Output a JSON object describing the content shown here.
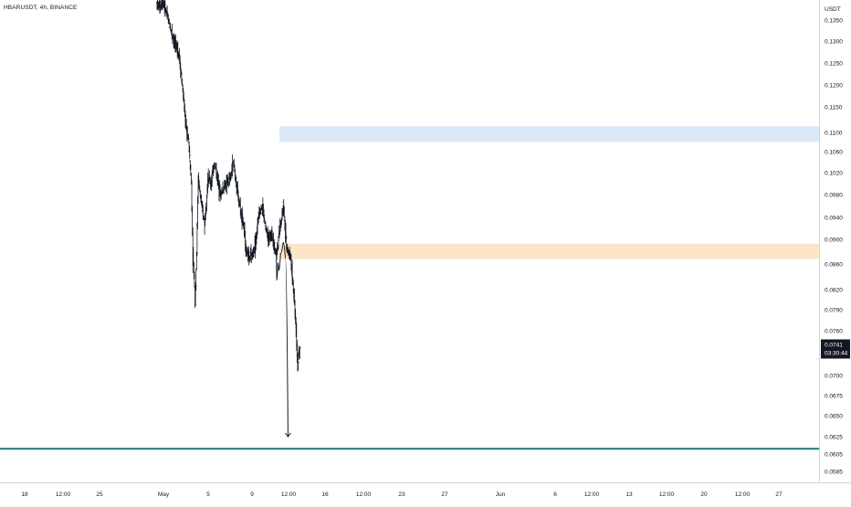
{
  "header": {
    "symbol_label": "HBARUSDT, 4h, BINANCE"
  },
  "price_axis": {
    "unit": "USDT",
    "ticks": [
      "0.1350",
      "0.1300",
      "0.1250",
      "0.1200",
      "0.1150",
      "0.1100",
      "0.1060",
      "0.1020",
      "0.0980",
      "0.0940",
      "0.0900",
      "0.0860",
      "0.0820",
      "0.0790",
      "0.0760",
      "0.0700",
      "0.0675",
      "0.0650",
      "0.0625",
      "0.0605",
      "0.0585"
    ],
    "last_price": "0.0741",
    "countdown": "03:30:44"
  },
  "time_axis": {
    "ticks": [
      "18",
      "12:00",
      "25",
      "May",
      "5",
      "9",
      "12:00",
      "16",
      "12:00",
      "23",
      "27",
      "Jun",
      "6",
      "12:00",
      "13",
      "12:00",
      "20",
      "12:00",
      "27"
    ]
  },
  "colors": {
    "resistance_zone": "#dce9f8",
    "support_zone": "#fde5c8",
    "target_line": "#1a7a70",
    "candles": "#131722",
    "last_price_badge": "#131722",
    "axis_text": "#131722",
    "axis_border": "#d1d4dc"
  },
  "chart_data": {
    "type": "candlestick",
    "symbol": "HBARUSDT",
    "interval": "4h",
    "exchange": "BINANCE",
    "y_scale": "log",
    "ylim": [
      0.0578,
      0.14
    ],
    "zones": [
      {
        "type": "resistance",
        "from": 0.108,
        "to": 0.1112
      },
      {
        "type": "support",
        "from": 0.0868,
        "to": 0.0893
      }
    ],
    "horizontal_lines": [
      {
        "price": 0.0611
      }
    ],
    "projection_path": [
      {
        "x": "Jun 5 00:00",
        "y": 0.088
      },
      {
        "x": "Jun 5 08:00",
        "y": 0.0835
      },
      {
        "x": "Jun 5 16:00",
        "y": 0.0862
      },
      {
        "x": "Jun 6 00:00",
        "y": 0.085
      },
      {
        "x": "Jun 6 12:00",
        "y": 0.0877
      },
      {
        "x": "Jun 7 08:00",
        "y": 0.0895
      },
      {
        "x": "Jun 8 00:00",
        "y": 0.087
      },
      {
        "x": "Jun 8 20:00",
        "y": 0.0625
      }
    ],
    "price_path": [
      {
        "x": "Apr 29 00:00",
        "p": 0.139
      },
      {
        "x": "Apr 30 00:00",
        "p": 0.138
      },
      {
        "x": "May 1 00:00",
        "p": 0.1395
      },
      {
        "x": "May 2 00:00",
        "p": 0.137
      },
      {
        "x": "May 3 00:00",
        "p": 0.134
      },
      {
        "x": "May 4 12:00",
        "p": 0.13
      },
      {
        "x": "May 6 00:00",
        "p": 0.127
      },
      {
        "x": "May 7 00:00",
        "p": 0.12
      },
      {
        "x": "May 8 00:00",
        "p": 0.112
      },
      {
        "x": "May 9 00:00",
        "p": 0.108
      },
      {
        "x": "May 9 20:00",
        "p": 0.1
      },
      {
        "x": "May 10 08:00",
        "p": 0.087
      },
      {
        "x": "May 10 20:00",
        "p": 0.083
      },
      {
        "x": "May 11 00:00",
        "p": 0.08
      },
      {
        "x": "May 11 12:00",
        "p": 0.088
      },
      {
        "x": "May 12 00:00",
        "p": 0.101
      },
      {
        "x": "May 13 00:00",
        "p": 0.096
      },
      {
        "x": "May 14 00:00",
        "p": 0.093
      },
      {
        "x": "May 15 00:00",
        "p": 0.101
      },
      {
        "x": "May 16 00:00",
        "p": 0.1
      },
      {
        "x": "May 17 00:00",
        "p": 0.104
      },
      {
        "x": "May 18 00:00",
        "p": 0.101
      },
      {
        "x": "May 19 00:00",
        "p": 0.098
      },
      {
        "x": "May 20 00:00",
        "p": 0.0995
      },
      {
        "x": "May 21 00:00",
        "p": 0.1
      },
      {
        "x": "May 22 00:00",
        "p": 0.101
      },
      {
        "x": "May 23 00:00",
        "p": 0.104
      },
      {
        "x": "May 24 00:00",
        "p": 0.099
      },
      {
        "x": "May 25 00:00",
        "p": 0.096
      },
      {
        "x": "May 26 00:00",
        "p": 0.093
      },
      {
        "x": "May 27 00:00",
        "p": 0.088
      },
      {
        "x": "May 28 00:00",
        "p": 0.087
      },
      {
        "x": "May 29 00:00",
        "p": 0.0875
      },
      {
        "x": "May 30 00:00",
        "p": 0.09
      },
      {
        "x": "May 31 00:00",
        "p": 0.095
      },
      {
        "x": "Jun 1 00:00",
        "p": 0.096
      },
      {
        "x": "Jun 2 00:00",
        "p": 0.092
      },
      {
        "x": "Jun 3 00:00",
        "p": 0.09
      },
      {
        "x": "Jun 4 00:00",
        "p": 0.091
      },
      {
        "x": "Jun 5 00:00",
        "p": 0.088
      },
      {
        "x": "Jun 5 12:00",
        "p": 0.088
      },
      {
        "x": "Jun 6 00:00",
        "p": 0.09
      },
      {
        "x": "Jun 7 00:00",
        "p": 0.094
      },
      {
        "x": "Jun 7 12:00",
        "p": 0.0965
      },
      {
        "x": "Jun 8 00:00",
        "p": 0.093
      },
      {
        "x": "Jun 8 12:00",
        "p": 0.089
      },
      {
        "x": "Jun 9 00:00",
        "p": 0.088
      },
      {
        "x": "Jun 9 20:00",
        "p": 0.087
      },
      {
        "x": "Jun 10 12:00",
        "p": 0.083
      },
      {
        "x": "Jun 11 00:00",
        "p": 0.08
      },
      {
        "x": "Jun 11 12:00",
        "p": 0.076
      },
      {
        "x": "Jun 12 00:00",
        "p": 0.071
      },
      {
        "x": "Jun 12 12:00",
        "p": 0.0735
      }
    ]
  }
}
